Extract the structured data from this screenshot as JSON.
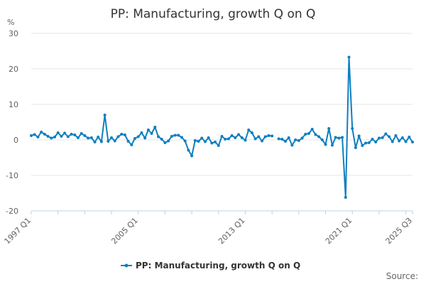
{
  "chart_data": {
    "type": "line",
    "title": "PP: Manufacturing, growth Q on Q",
    "ylabel": "%",
    "xlabel": "",
    "ylim": [
      -20,
      30
    ],
    "yticks": [
      -20,
      -10,
      0,
      10,
      20,
      30
    ],
    "grid": true,
    "legend_position": "bottom-center",
    "source_label": "Source:",
    "colors": {
      "series": "#0f7fc0",
      "grid": "#e6e6e6",
      "axis": "#c0d0e0"
    },
    "x_tick_labels": [
      "1997 Q1",
      "2005 Q1",
      "2013 Q1",
      "2021 Q1",
      "2025 Q3"
    ],
    "x_tick_indices": [
      0,
      32,
      64,
      96,
      114
    ],
    "x_categories_start": "1997 Q1",
    "x_categories_end": "2025 Q3",
    "series": [
      {
        "name": "PP: Manufacturing, growth Q on Q",
        "values": [
          1.2,
          1.5,
          0.8,
          2.2,
          1.6,
          1.0,
          0.5,
          0.8,
          2.0,
          1.0,
          1.9,
          0.9,
          1.6,
          1.4,
          0.6,
          1.8,
          1.2,
          0.5,
          0.6,
          -0.6,
          0.8,
          -0.5,
          7.0,
          -0.4,
          0.6,
          -0.3,
          0.9,
          1.6,
          1.4,
          -0.4,
          -1.4,
          0.4,
          0.9,
          2.0,
          0.5,
          2.8,
          1.8,
          3.6,
          0.9,
          0.2,
          -0.8,
          -0.3,
          1.0,
          1.3,
          1.3,
          0.7,
          -0.3,
          -2.9,
          -4.5,
          -0.2,
          -0.4,
          0.5,
          -0.5,
          0.6,
          -0.9,
          -0.6,
          -1.6,
          1.0,
          0.2,
          0.3,
          1.2,
          0.6,
          1.5,
          0.6,
          -0.1,
          2.8,
          2.0,
          0.3,
          0.9,
          -0.3,
          0.9,
          1.2,
          1.1,
          null,
          0.3,
          0.2,
          -0.4,
          0.6,
          -1.5,
          0.0,
          -0.2,
          0.5,
          1.6,
          1.8,
          3.0,
          1.5,
          0.9,
          0.0,
          -1.3,
          3.2,
          -1.5,
          0.7,
          0.5,
          0.7,
          -16.2,
          23.3,
          3.2,
          -2.2,
          1.1,
          -1.6,
          -0.9,
          -0.8,
          0.2,
          -0.6,
          0.5,
          0.6,
          1.7,
          0.9,
          -0.5,
          1.2,
          -0.3,
          0.6,
          -0.5,
          0.8,
          -0.6
        ]
      }
    ]
  }
}
